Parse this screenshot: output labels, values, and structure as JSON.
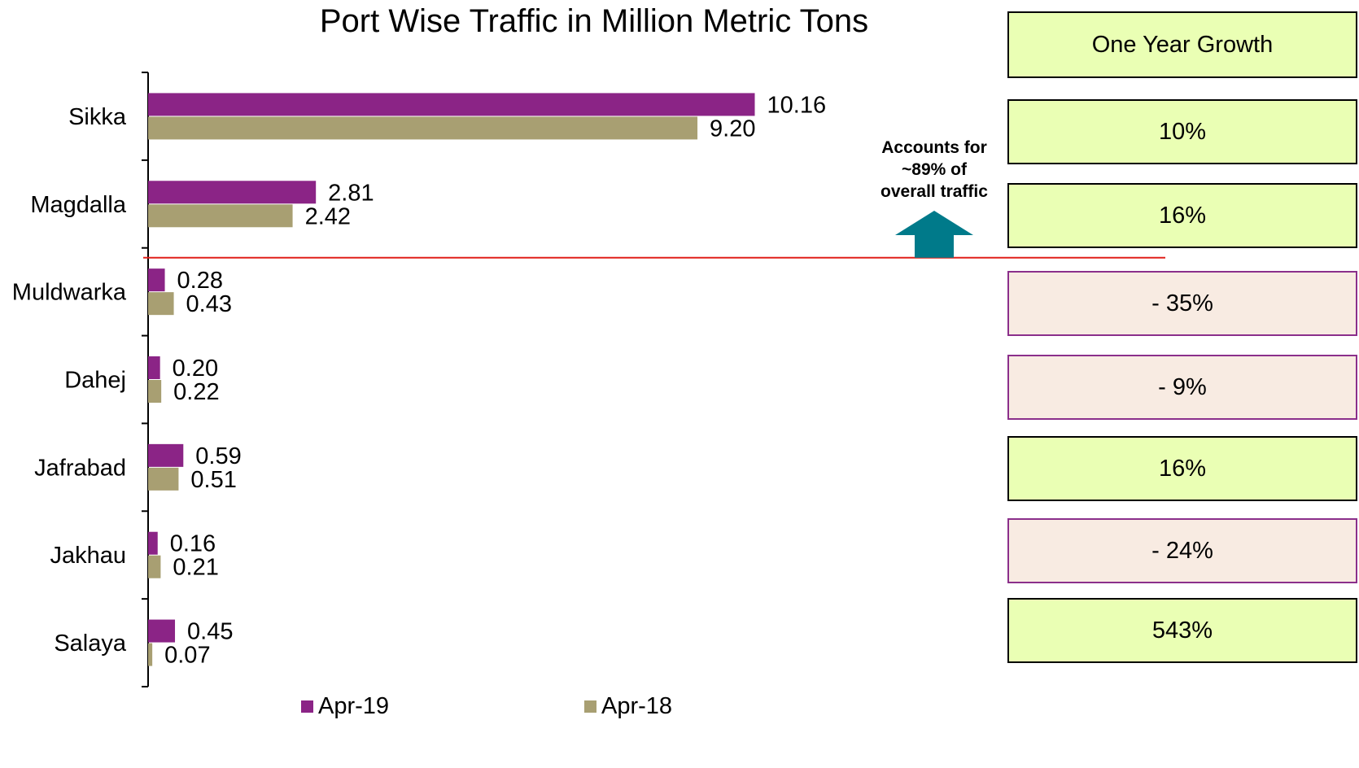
{
  "chart_data": {
    "type": "bar",
    "orientation": "horizontal",
    "title": "Port Wise Traffic in Million Metric Tons",
    "categories": [
      "Sikka",
      "Magdalla",
      "Muldwarka",
      "Dahej",
      "Jafrabad",
      "Jakhau",
      "Salaya"
    ],
    "series": [
      {
        "name": "Apr-19",
        "color": "#8b2486",
        "values": [
          10.16,
          2.81,
          0.28,
          0.2,
          0.59,
          0.16,
          0.45
        ],
        "labels": [
          "10.16",
          "2.81",
          "0.28",
          "0.20",
          "0.59",
          "0.16",
          "0.45"
        ]
      },
      {
        "name": "Apr-18",
        "color": "#a89f72",
        "values": [
          9.2,
          2.42,
          0.43,
          0.22,
          0.51,
          0.21,
          0.07
        ],
        "labels": [
          "9.20",
          "2.42",
          "0.43",
          "0.22",
          "0.51",
          "0.21",
          "0.07"
        ]
      }
    ],
    "xlim": [
      0,
      12.47
    ],
    "legend_position": "bottom",
    "separator_color": "#e0201a"
  },
  "growth": {
    "header": "One Year Growth",
    "items": [
      {
        "label": "10%",
        "trend": "pos"
      },
      {
        "label": "16%",
        "trend": "pos"
      },
      {
        "label": "- 35%",
        "trend": "neg"
      },
      {
        "label": "- 9%",
        "trend": "neg"
      },
      {
        "label": "16%",
        "trend": "pos"
      },
      {
        "label": "- 24%",
        "trend": "neg"
      },
      {
        "label": "543%",
        "trend": "pos"
      }
    ]
  },
  "annotation": {
    "text_line1": "Accounts for",
    "text_line2": "~89% of",
    "text_line3": "overall traffic",
    "arrow_icon": "up-arrow-icon",
    "arrow_color": "#007a8a"
  }
}
